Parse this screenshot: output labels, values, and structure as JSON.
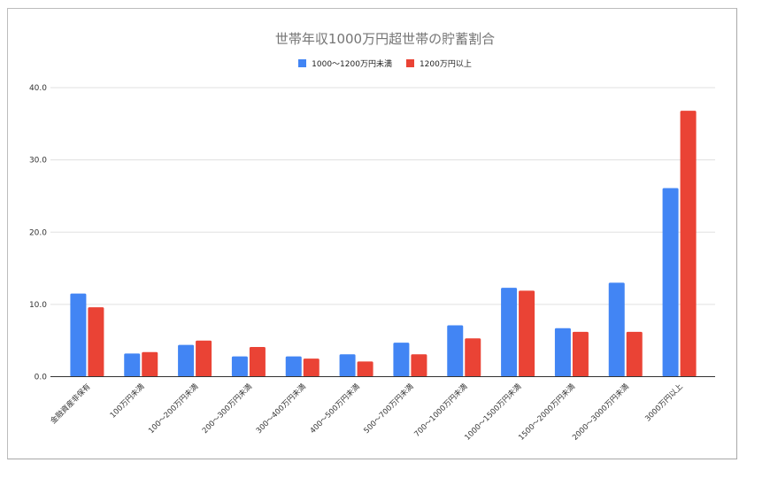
{
  "chart_data": {
    "type": "bar",
    "title": "世帯年収1000万円超世帯の貯蓄割合",
    "xlabel": "",
    "ylabel": "",
    "ylim": [
      0,
      40
    ],
    "yticks": [
      "0.0",
      "10.0",
      "20.0",
      "30.0",
      "40.0"
    ],
    "grid": true,
    "legend_position": "top",
    "categories": [
      "金融資産非保有",
      "100万円未満",
      "100～200万円未満",
      "200～300万円未満",
      "300～400万円未満",
      "400～500万円未満",
      "500～700万円未満",
      "700～1000万円未満",
      "1000～1500万円未満",
      "1500～2000万円未満",
      "2000～3000万円未満",
      "3000万円以上"
    ],
    "series": [
      {
        "name": "1000～1200万円未満",
        "color": "#4285f4",
        "values": [
          11.5,
          3.2,
          4.4,
          2.8,
          2.8,
          3.1,
          4.7,
          7.1,
          12.3,
          6.7,
          13.0,
          26.1
        ]
      },
      {
        "name": "1200万円以上",
        "color": "#ea4335",
        "values": [
          9.6,
          3.4,
          5.0,
          4.1,
          2.5,
          2.1,
          3.1,
          5.3,
          11.9,
          6.2,
          6.2,
          36.8
        ]
      }
    ]
  }
}
